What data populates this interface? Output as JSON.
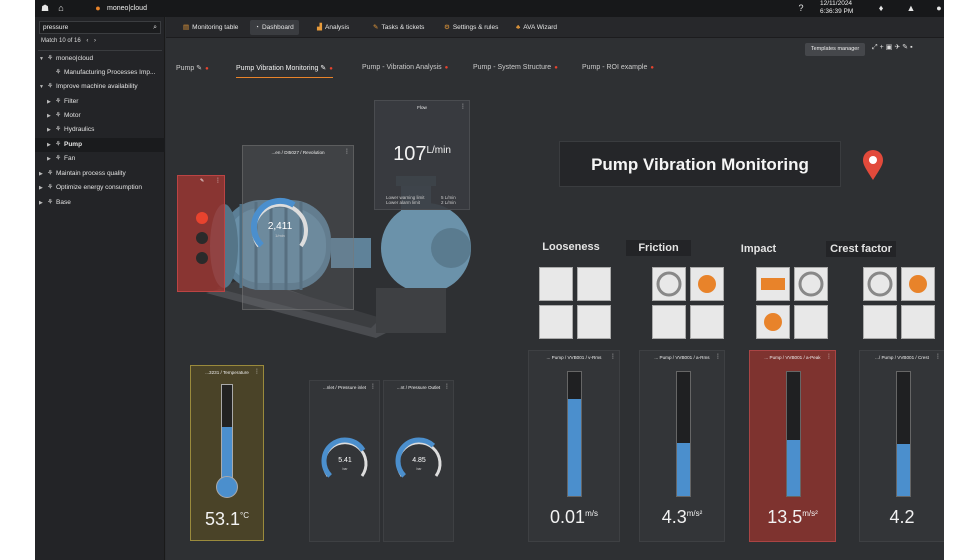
{
  "topbar": {
    "brand": "moneo|cloud",
    "date": "12/11/2024",
    "time": "6:36:39 PM"
  },
  "sidebar": {
    "search_value": "pressure",
    "match_text": "Match 10 of 16",
    "items": [
      {
        "label": "moneo|cloud"
      },
      {
        "label": "Manufacturing Processes Imp..."
      },
      {
        "label": "Improve machine availability"
      },
      {
        "label": "Filter"
      },
      {
        "label": "Motor"
      },
      {
        "label": "Hydraulics"
      },
      {
        "label": "Pump"
      },
      {
        "label": "Fan"
      },
      {
        "label": "Maintain process quality"
      },
      {
        "label": "Optimize energy consumption"
      },
      {
        "label": "Base"
      }
    ]
  },
  "nav": {
    "tabs": [
      {
        "label": "Monitoring table"
      },
      {
        "label": "Dashboard"
      },
      {
        "label": "Analysis"
      },
      {
        "label": "Tasks & tickets"
      },
      {
        "label": "Settings & rules"
      },
      {
        "label": "AVA Wizard"
      }
    ]
  },
  "toolbar": {
    "templates_label": "Templates manager"
  },
  "subtabs": [
    {
      "label": "Pump"
    },
    {
      "label": "Pump Vibration Monitoring"
    },
    {
      "label": "Pump - Vibration Analysis"
    },
    {
      "label": "Pump - System Structure"
    },
    {
      "label": "Pump - ROI example"
    }
  ],
  "dashboard": {
    "title": "Pump Vibration Monitoring",
    "revolution": {
      "label": "...en / DI5027 / Revolution",
      "value": "2,411",
      "unit": "1/min",
      "level": 0.62
    },
    "flow": {
      "label": "Flow",
      "value": "107",
      "unit": "L/min",
      "warn_label": "Lower warning limit",
      "warn_value": "5 L/min",
      "alarm_label": "Lower alarm limit",
      "alarm_value": "2 L/min"
    },
    "temperature": {
      "label": "...3231 / Temperature",
      "value": "53.1",
      "unit": "°C",
      "level": 0.55
    },
    "pressure_inlet": {
      "label": "...nlet / Pressure inlet",
      "value": "5.41",
      "unit": "bar",
      "level": 0.72
    },
    "pressure_outlet": {
      "label": "...nt / Pressure Outlet",
      "value": "4.85",
      "unit": "bar",
      "level": 0.66
    },
    "categories": [
      {
        "name": "Looseness",
        "widget_label": "... Pump / VVB001 / v-Rms",
        "value": "0.01",
        "unit": "m/s",
        "level": 0.78,
        "alarm": false
      },
      {
        "name": "Friction",
        "widget_label": "... Pump / VVB001 / a-Rms",
        "value": "4.3",
        "unit": "m/s²",
        "level": 0.43,
        "alarm": false
      },
      {
        "name": "Impact",
        "widget_label": "... Pump / VVB001 / a-Peak",
        "value": "13.5",
        "unit": "m/s²",
        "level": 0.45,
        "alarm": true
      },
      {
        "name": "Crest factor",
        "widget_label": ".../ Pump / VVB001 / Crest",
        "value": "4.2",
        "unit": "",
        "level": 0.42,
        "alarm": false
      }
    ]
  },
  "colors": {
    "accent": "#e8832a",
    "bar": "#4b8fcd",
    "alarm": "#8b3530",
    "warn": "#6b5d2a",
    "dot_red": "#e8432e"
  }
}
